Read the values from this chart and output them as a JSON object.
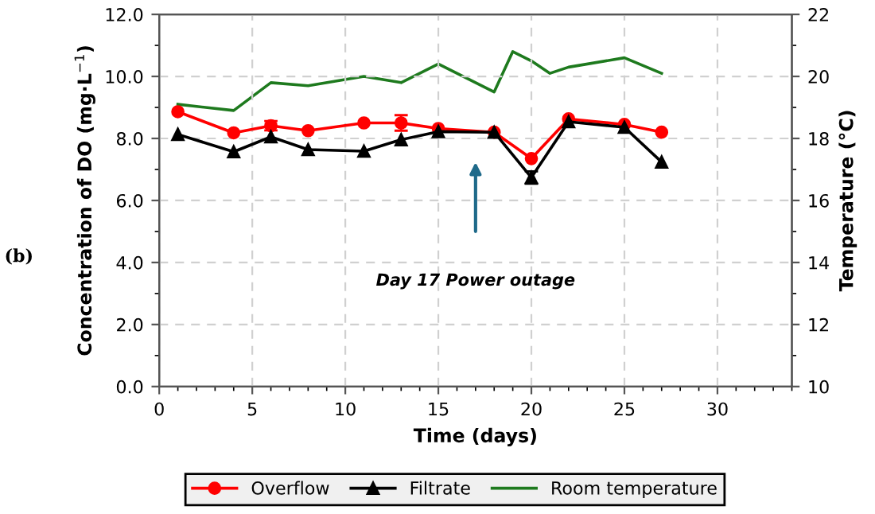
{
  "chart_data": {
    "type": "line",
    "xlabel": "Time (days)",
    "ylabel": "Concentration of DO (mg·L$^{−1}$)",
    "y2label": "Temperature (°C)",
    "xlim": [
      0,
      34
    ],
    "xticks": [
      0,
      5,
      10,
      15,
      20,
      25,
      30
    ],
    "ylim": [
      0,
      12
    ],
    "yticks": [
      {
        "value": 0,
        "label": "0.0"
      },
      {
        "value": 2,
        "label": "2.0"
      },
      {
        "value": 4,
        "label": "4.0"
      },
      {
        "value": 6,
        "label": "6.0"
      },
      {
        "value": 8,
        "label": "8.0"
      },
      {
        "value": 10,
        "label": "10.0"
      },
      {
        "value": 12,
        "label": "12.0"
      }
    ],
    "y2lim": [
      10,
      22
    ],
    "y2ticks": [
      10,
      12,
      14,
      16,
      18,
      20,
      22
    ],
    "series": [
      {
        "name": "Overflow",
        "color": "#ff0000",
        "marker": "circle",
        "x": [
          1,
          4,
          6,
          8,
          11,
          13,
          15,
          18,
          20,
          22,
          25,
          27
        ],
        "values": [
          8.86,
          8.18,
          8.41,
          8.25,
          8.5,
          8.5,
          8.32,
          8.2,
          7.35,
          8.63,
          8.45,
          8.2
        ],
        "errors": [
          null,
          null,
          0.15,
          null,
          null,
          0.25,
          null,
          null,
          null,
          null,
          null,
          null
        ]
      },
      {
        "name": "Filtrate",
        "color": "#000000",
        "marker": "triangle",
        "x": [
          1,
          4,
          6,
          8,
          11,
          13,
          15,
          18,
          20,
          22,
          25,
          27
        ],
        "values": [
          8.13,
          7.57,
          8.05,
          7.64,
          7.59,
          7.96,
          8.22,
          8.2,
          6.74,
          8.54,
          8.36,
          7.24
        ],
        "errors": [
          null,
          null,
          null,
          null,
          null,
          null,
          null,
          null,
          0.2,
          null,
          null,
          null
        ]
      },
      {
        "name": "Room temperature",
        "color": "#1e7a1e",
        "marker": "none",
        "axis": "y2",
        "x": [
          1,
          4,
          6,
          8,
          11,
          13,
          15,
          18,
          19,
          20,
          21,
          22,
          25,
          27
        ],
        "values": [
          19.1,
          18.9,
          19.8,
          19.7,
          20.0,
          19.8,
          20.4,
          19.5,
          20.8,
          20.5,
          20.1,
          20.3,
          20.6,
          20.1
        ]
      }
    ],
    "annotations": [
      "Day 17 Power outage",
      "(b)"
    ],
    "grid": true,
    "legend": "bottom",
    "line_style": "solid"
  }
}
